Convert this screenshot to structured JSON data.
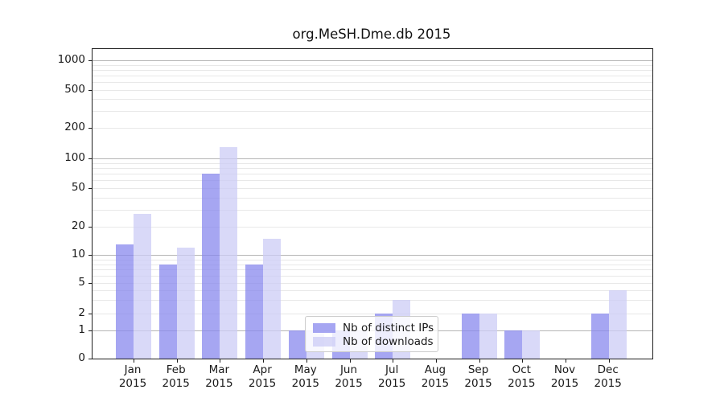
{
  "chart_data": {
    "type": "bar",
    "title": "org.MeSH.Dme.db 2015",
    "categories": [
      "Jan",
      "Feb",
      "Mar",
      "Apr",
      "May",
      "Jun",
      "Jul",
      "Aug",
      "Sep",
      "Oct",
      "Nov",
      "Dec"
    ],
    "category_year": "2015",
    "series": [
      {
        "name": "Nb of distinct IPs",
        "color": "#8888ee",
        "values": [
          13,
          8,
          70,
          8,
          1,
          1,
          2,
          0,
          2,
          1,
          0,
          2
        ]
      },
      {
        "name": "Nb of downloads",
        "color": "#ccccf5",
        "values": [
          27,
          12,
          130,
          15,
          1,
          1,
          3,
          0,
          2,
          1,
          0,
          4
        ]
      }
    ],
    "xlabel": "",
    "ylabel": "",
    "y_axis": {
      "scale": "log-like with zero baseline",
      "tick_labels": [
        0,
        1,
        2,
        5,
        10,
        20,
        50,
        100,
        200,
        500,
        1000
      ],
      "major_gridline_values": [
        1,
        10,
        100,
        1000
      ],
      "minor_gridline_values": [
        3,
        4,
        6,
        7,
        8,
        9,
        30,
        40,
        60,
        70,
        80,
        90,
        300,
        400,
        600,
        700,
        800,
        900
      ],
      "ylim": [
        0,
        1300
      ]
    },
    "grid": true,
    "legend": {
      "position": "lower center-left",
      "entries": [
        "Nb of distinct IPs",
        "Nb of downloads"
      ]
    }
  },
  "colors": {
    "distinct_ips_bar": "#8888ee",
    "downloads_bar": "#ccccf5",
    "grid_major": "#b5b5b5",
    "grid_minor": "#e8e8e8",
    "axis_spine": "#1f1f1f"
  }
}
